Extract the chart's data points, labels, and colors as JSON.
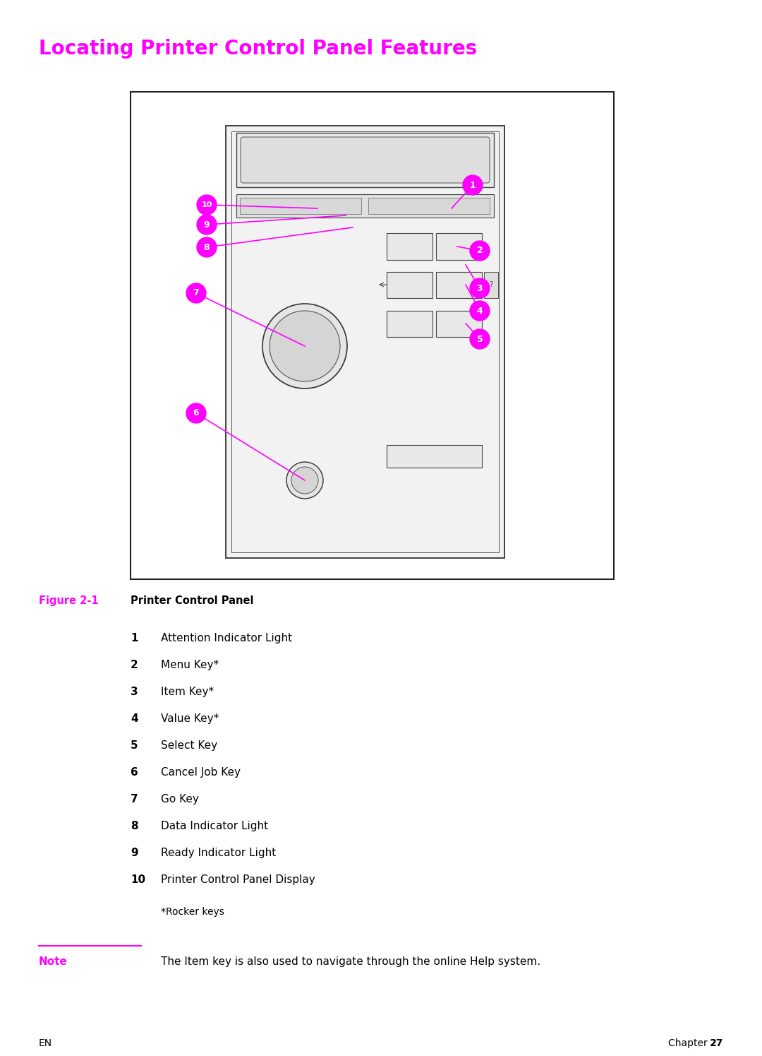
{
  "title": "Locating Printer Control Panel Features",
  "title_color": "#FF00FF",
  "title_fontsize": 20,
  "bg_color": "#FFFFFF",
  "figure_2_1_label": "Figure 2-1",
  "figure_2_1_title": "Printer Control Panel",
  "items": [
    {
      "num": "1",
      "text": "Attention Indicator Light"
    },
    {
      "num": "2",
      "text": "Menu Key*"
    },
    {
      "num": "3",
      "text": "Item Key*"
    },
    {
      "num": "4",
      "text": "Value Key*"
    },
    {
      "num": "5",
      "text": "Select Key"
    },
    {
      "num": "6",
      "text": "Cancel Job Key"
    },
    {
      "num": "7",
      "text": "Go Key"
    },
    {
      "num": "8",
      "text": "Data Indicator Light"
    },
    {
      "num": "9",
      "text": "Ready Indicator Light"
    },
    {
      "num": "10",
      "text": "Printer Control Panel Display"
    }
  ],
  "rocker_note": "*Rocker keys",
  "note_label": "Note",
  "note_text": "The Item key is also used to navigate through the online Help system.",
  "footer_left": "EN",
  "footer_right_normal": "Chapter 2  ",
  "footer_right_bold": "27",
  "magenta": "#FF00FF",
  "black": "#000000"
}
